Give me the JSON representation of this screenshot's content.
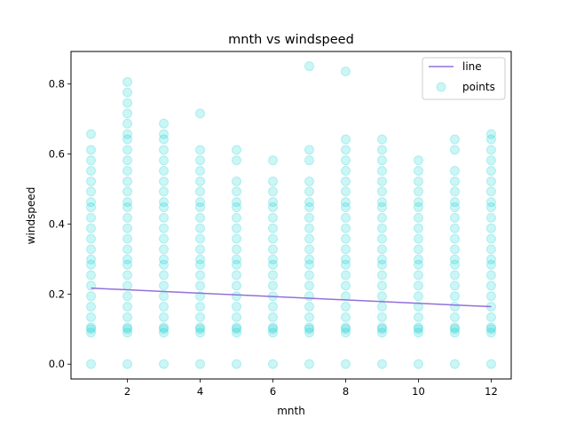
{
  "chart_data": {
    "type": "scatter",
    "title": "mnth vs windspeed",
    "xlabel": "mnth",
    "ylabel": "windspeed",
    "xlim": [
      0.45,
      12.55
    ],
    "ylim": [
      -0.0425,
      0.893
    ],
    "xticks": [
      2,
      4,
      6,
      8,
      10,
      12
    ],
    "yticks": [
      0.0,
      0.2,
      0.4,
      0.6,
      0.8
    ],
    "xtick_labels": [
      "2",
      "4",
      "6",
      "8",
      "10",
      "12"
    ],
    "ytick_labels": [
      "0.0",
      "0.2",
      "0.4",
      "0.6",
      "0.8"
    ],
    "legend": {
      "position": "top-right",
      "entries": [
        "line",
        "points"
      ]
    },
    "colors": {
      "line": "#9370db",
      "points": "#00ced1"
    },
    "line": {
      "name": "line",
      "x": [
        1,
        12
      ],
      "y": [
        0.217,
        0.164
      ]
    },
    "points": {
      "name": "points",
      "common_levels": [
        0.0,
        0.09,
        0.1,
        0.105,
        0.134,
        0.164,
        0.194,
        0.224,
        0.254,
        0.284,
        0.299,
        0.328,
        0.358,
        0.388,
        0.418,
        0.448,
        0.463,
        0.493,
        0.522
      ],
      "by_month": [
        {
          "x": 1,
          "extra": [
            0.552,
            0.582,
            0.612,
            0.657
          ]
        },
        {
          "x": 2,
          "extra": [
            0.552,
            0.582,
            0.612,
            0.642,
            0.657,
            0.687,
            0.716,
            0.746,
            0.776,
            0.806
          ]
        },
        {
          "x": 3,
          "extra": [
            0.552,
            0.582,
            0.612,
            0.642,
            0.657,
            0.687
          ]
        },
        {
          "x": 4,
          "extra": [
            0.552,
            0.582,
            0.612,
            0.716
          ]
        },
        {
          "x": 5,
          "extra": [
            0.582,
            0.612
          ]
        },
        {
          "x": 6,
          "extra": [
            0.582
          ]
        },
        {
          "x": 7,
          "extra": [
            0.582,
            0.612,
            0.851
          ]
        },
        {
          "x": 8,
          "extra": [
            0.552,
            0.582,
            0.612,
            0.642,
            0.836
          ]
        },
        {
          "x": 9,
          "extra": [
            0.552,
            0.582,
            0.612,
            0.642
          ]
        },
        {
          "x": 10,
          "extra": [
            0.552,
            0.582
          ]
        },
        {
          "x": 11,
          "extra": [
            0.552,
            0.612,
            0.642
          ]
        },
        {
          "x": 12,
          "extra": [
            0.552,
            0.582,
            0.612,
            0.642,
            0.657
          ]
        }
      ]
    }
  }
}
